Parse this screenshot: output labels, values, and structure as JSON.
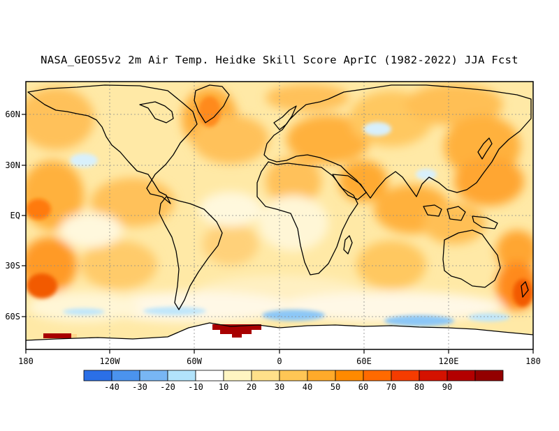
{
  "title": "NASA_GEOS5v2 2m Air Temp. Heidke Skill Score AprIC (1982-2022) JJA Fcst",
  "x_ticks": [
    {
      "lon": -180,
      "label": "180"
    },
    {
      "lon": -120,
      "label": "120W"
    },
    {
      "lon": -60,
      "label": "60W"
    },
    {
      "lon": 0,
      "label": "0"
    },
    {
      "lon": 60,
      "label": "60E"
    },
    {
      "lon": 120,
      "label": "120E"
    },
    {
      "lon": 180,
      "label": "180"
    }
  ],
  "y_ticks": [
    {
      "lat": 60,
      "label": "60N"
    },
    {
      "lat": 30,
      "label": "30N"
    },
    {
      "lat": 0,
      "label": "EQ"
    },
    {
      "lat": -30,
      "label": "30S"
    },
    {
      "lat": -60,
      "label": "60S"
    }
  ],
  "lat_range": [
    -80,
    80
  ],
  "lon_range": [
    -180,
    180
  ],
  "grid": true,
  "colorbar": {
    "colors": [
      "#2b6fe6",
      "#4b93ee",
      "#78b6f4",
      "#b2e3fb",
      "#ffffff",
      "#fff5c2",
      "#ffe08a",
      "#ffc655",
      "#ffaa2a",
      "#ff8a00",
      "#ff6a00",
      "#f53c00",
      "#d41200",
      "#b30000",
      "#930000"
    ],
    "labels": [
      "-40",
      "-30",
      "-20",
      "-10",
      "10",
      "20",
      "30",
      "40",
      "50",
      "60",
      "70",
      "80",
      "90"
    ]
  }
}
